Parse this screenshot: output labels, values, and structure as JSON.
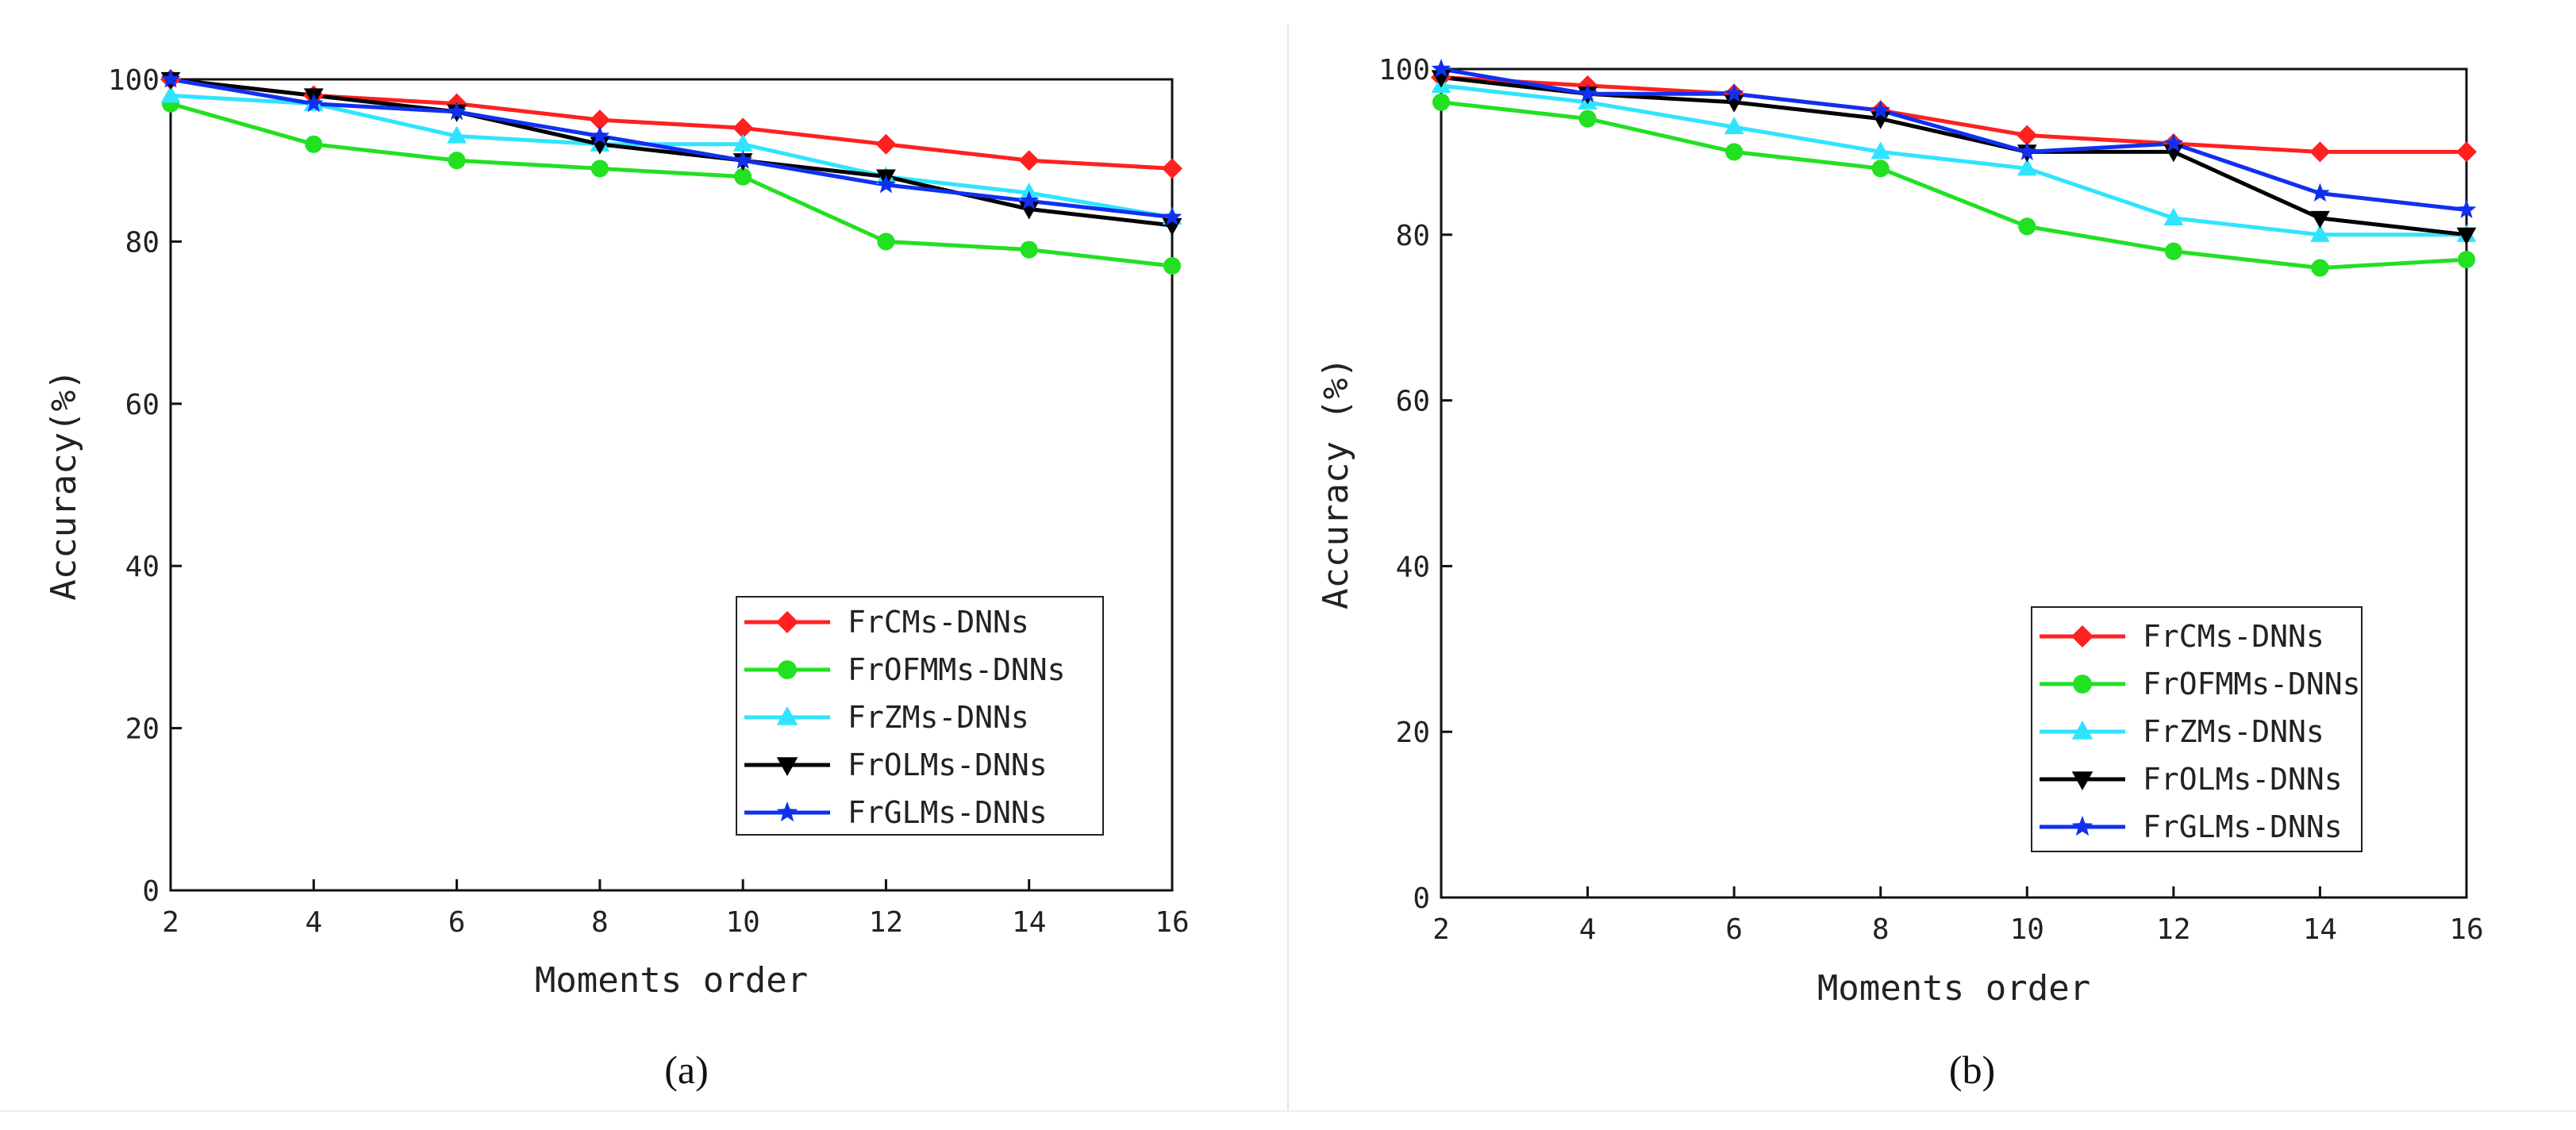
{
  "panels": [
    {
      "caption": "(a)",
      "chart_data": {
        "type": "line",
        "title": "",
        "xlabel": "Moments order",
        "ylabel": "Accuracy(%)",
        "x": [
          2,
          4,
          6,
          8,
          10,
          12,
          14,
          16
        ],
        "xticks": [
          "2",
          "4",
          "6",
          "8",
          "10",
          "12",
          "14",
          "16"
        ],
        "yticks": [
          "0",
          "20",
          "40",
          "60",
          "80",
          "100"
        ],
        "xlim": [
          2,
          16
        ],
        "ylim": [
          0,
          100
        ],
        "grid": false,
        "legend_position": "bottom-right",
        "series": [
          {
            "name": "FrCMs-DNNs",
            "color": "#ff2020",
            "marker": "diamond",
            "values": [
              100,
              98,
              97,
              95,
              94,
              92,
              90,
              89
            ]
          },
          {
            "name": "FrOFMMs-DNNs",
            "color": "#22e022",
            "marker": "circle",
            "values": [
              97,
              92,
              90,
              89,
              88,
              80,
              79,
              77
            ]
          },
          {
            "name": "FrZMs-DNNs",
            "color": "#30e4ff",
            "marker": "triangle-up",
            "values": [
              98,
              97,
              93,
              92,
              92,
              88,
              86,
              83
            ]
          },
          {
            "name": "FrOLMs-DNNs",
            "color": "#000000",
            "marker": "triangle-down",
            "values": [
              100,
              98,
              96,
              92,
              90,
              88,
              84,
              82
            ]
          },
          {
            "name": "FrGLMs-DNNs",
            "color": "#1030f0",
            "marker": "star",
            "values": [
              100,
              97,
              96,
              93,
              90,
              87,
              85,
              83
            ]
          }
        ]
      }
    },
    {
      "caption": "(b)",
      "chart_data": {
        "type": "line",
        "title": "",
        "xlabel": "Moments order",
        "ylabel": "Accuracy (%)",
        "x": [
          2,
          4,
          6,
          8,
          10,
          12,
          14,
          16
        ],
        "xticks": [
          "2",
          "4",
          "6",
          "8",
          "10",
          "12",
          "14",
          "16"
        ],
        "yticks": [
          "0",
          "20",
          "40",
          "60",
          "80",
          "100"
        ],
        "xlim": [
          2,
          16
        ],
        "ylim": [
          0,
          100
        ],
        "grid": false,
        "legend_position": "bottom-right",
        "series": [
          {
            "name": "FrCMs-DNNs",
            "color": "#ff2020",
            "marker": "diamond",
            "values": [
              99,
              98,
              97,
              95,
              92,
              91,
              90,
              90
            ]
          },
          {
            "name": "FrOFMMs-DNNs",
            "color": "#22e022",
            "marker": "circle",
            "values": [
              96,
              94,
              90,
              88,
              81,
              78,
              76,
              77
            ]
          },
          {
            "name": "FrZMs-DNNs",
            "color": "#30e4ff",
            "marker": "triangle-up",
            "values": [
              98,
              96,
              93,
              90,
              88,
              82,
              80,
              80
            ]
          },
          {
            "name": "FrOLMs-DNNs",
            "color": "#000000",
            "marker": "triangle-down",
            "values": [
              99,
              97,
              96,
              94,
              90,
              90,
              82,
              80
            ]
          },
          {
            "name": "FrGLMs-DNNs",
            "color": "#1030f0",
            "marker": "star",
            "values": [
              100,
              97,
              97,
              95,
              90,
              91,
              85,
              83
            ]
          }
        ]
      }
    }
  ]
}
